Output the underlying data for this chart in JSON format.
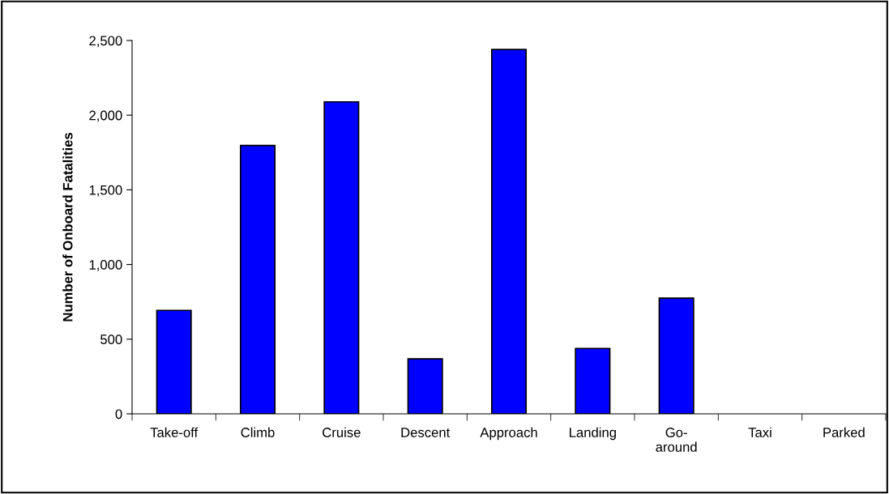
{
  "chart_data": {
    "type": "bar",
    "ylabel": "Number of Onboard Fatalities",
    "categories": [
      "Take-off",
      "Climb",
      "Cruise",
      "Descent",
      "Approach",
      "Landing",
      "Go-\naround",
      "Taxi",
      "Parked"
    ],
    "values": [
      693,
      1797,
      2089,
      368,
      2440,
      438,
      775,
      0,
      0
    ],
    "color": "#0000ff",
    "ylim": [
      0,
      2500
    ],
    "yticks": [
      {
        "value": 0,
        "label": "0"
      },
      {
        "value": 500,
        "label": "500"
      },
      {
        "value": 1000,
        "label": "1,000"
      },
      {
        "value": 1500,
        "label": "1,500"
      },
      {
        "value": 2000,
        "label": "2,000"
      },
      {
        "value": 2500,
        "label": "2,500"
      }
    ],
    "grid": false,
    "legend": false
  }
}
